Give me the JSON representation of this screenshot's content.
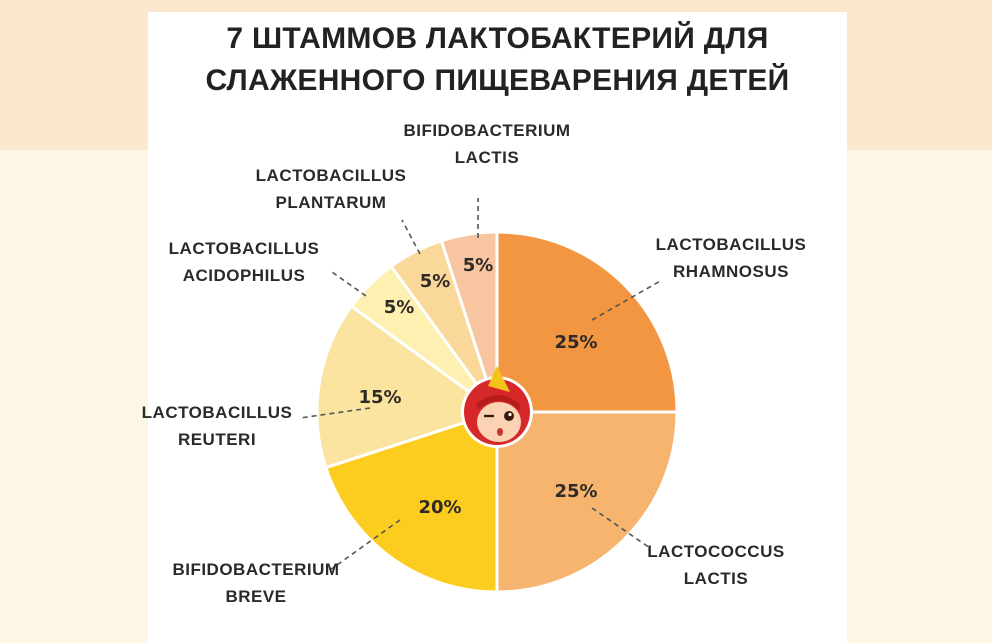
{
  "title": {
    "line1": "7 ШТАММОВ ЛАКТОБАКТЕРИЙ ДЛЯ",
    "line2": "СЛАЖЕННОГО ПИЩЕВАРЕНИЯ ДЕТЕЙ"
  },
  "colors": {
    "band": "#fbe8cc",
    "background": "#fdf6e4",
    "card": "#ffffff",
    "mascot_red": "#d62828",
    "mascot_yellow": "#f4c21b"
  },
  "mascot_icon": "winking-mascot-icon",
  "chart_data": {
    "type": "pie",
    "title": "7 ШТАММОВ ЛАКТОБАКТЕРИЙ ДЛЯ СЛАЖЕННОГО ПИЩЕВАРЕНИЯ ДЕТЕЙ",
    "unit": "%",
    "slices": [
      {
        "label": [
          "LACTOBACILLUS",
          "RHAMNOSUS"
        ],
        "value": 25,
        "value_label": "25%",
        "color": "#f29641"
      },
      {
        "label": [
          "LACTOCOCCUS",
          "LACTIS"
        ],
        "value": 25,
        "value_label": "25%",
        "color": "#f6b46e"
      },
      {
        "label": [
          "BIFIDOBACTERIUM",
          "BREVE"
        ],
        "value": 20,
        "value_label": "20%",
        "color": "#fccd1f"
      },
      {
        "label": [
          "LACTOBACILLUS",
          "REUTERI"
        ],
        "value": 15,
        "value_label": "15%",
        "color": "#fbe4a0"
      },
      {
        "label": [
          "LACTOBACILLUS",
          "ACIDOPHILUS"
        ],
        "value": 5,
        "value_label": "5%",
        "color": "#fdf0b0"
      },
      {
        "label": [
          "LACTOBACILLUS",
          "PLANTARUM"
        ],
        "value": 5,
        "value_label": "5%",
        "color": "#fad89a"
      },
      {
        "label": [
          "BIFIDOBACTERIUM",
          "LACTIS"
        ],
        "value": 5,
        "value_label": "5%",
        "color": "#f7c5a0"
      }
    ]
  }
}
